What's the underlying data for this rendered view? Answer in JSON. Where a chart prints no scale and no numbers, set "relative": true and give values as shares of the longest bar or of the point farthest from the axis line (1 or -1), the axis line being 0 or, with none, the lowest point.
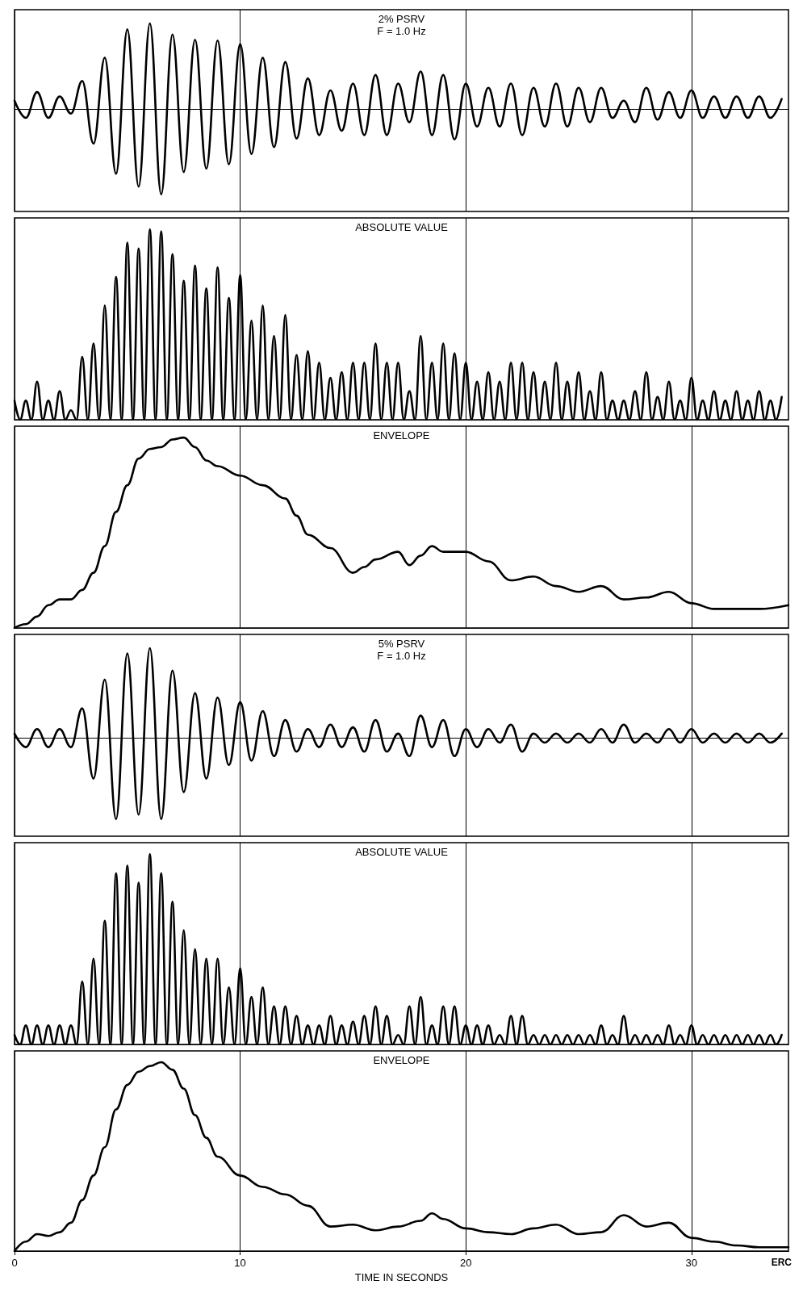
{
  "chart_data": [
    {
      "type": "line",
      "title": "2% PSRV",
      "subtitle": "F = 1.0 Hz",
      "relative": true,
      "color": "#000000",
      "marker": "none",
      "grid": "x",
      "tick_labels": false,
      "xlim": [
        0,
        34.3
      ],
      "xticks": [
        0,
        10,
        20,
        30
      ],
      "x": [
        0,
        0.5,
        1,
        1.5,
        2,
        2.5,
        3,
        3.5,
        4,
        4.5,
        5,
        5.5,
        6,
        6.5,
        7,
        7.5,
        8,
        8.5,
        9,
        9.5,
        10,
        10.5,
        11,
        11.5,
        12,
        12.5,
        13,
        13.5,
        14,
        14.5,
        15,
        15.5,
        16,
        16.5,
        17,
        17.5,
        18,
        18.5,
        19,
        19.5,
        20,
        20.5,
        21,
        21.5,
        22,
        22.5,
        23,
        23.5,
        24,
        24.5,
        25,
        25.5,
        26,
        26.5,
        27,
        27.5,
        28,
        28.5,
        29,
        29.5,
        30,
        30.5,
        31,
        31.5,
        32,
        32.5,
        33,
        33.5,
        34
      ],
      "values": [
        0.1,
        -0.1,
        0.2,
        -0.1,
        0.15,
        -0.05,
        0.33,
        -0.4,
        0.6,
        -0.75,
        0.93,
        -0.9,
        1.0,
        -0.99,
        0.87,
        -0.73,
        0.81,
        -0.69,
        0.8,
        -0.64,
        0.76,
        -0.52,
        0.6,
        -0.44,
        0.55,
        -0.34,
        0.36,
        -0.3,
        0.22,
        -0.25,
        0.3,
        -0.3,
        0.4,
        -0.3,
        0.3,
        -0.15,
        0.44,
        -0.3,
        0.4,
        -0.35,
        0.3,
        -0.2,
        0.25,
        -0.2,
        0.3,
        -0.3,
        0.25,
        -0.2,
        0.3,
        -0.2,
        0.25,
        -0.15,
        0.25,
        -0.1,
        0.1,
        -0.15,
        0.25,
        -0.12,
        0.2,
        -0.1,
        0.22,
        -0.1,
        0.15,
        -0.1,
        0.15,
        -0.1,
        0.15,
        -0.1,
        0.12
      ]
    },
    {
      "type": "line",
      "title": "ABSOLUTE VALUE",
      "relative": true,
      "color": "#000000",
      "marker": "none",
      "grid": "x",
      "tick_labels": false,
      "xlim": [
        0,
        34.3
      ],
      "xticks": [
        0,
        10,
        20,
        30
      ],
      "x": [
        0,
        0.25,
        0.5,
        0.75,
        1,
        1.25,
        1.5,
        1.75,
        2,
        2.25,
        2.5,
        2.75,
        3,
        3.25,
        3.5,
        3.75,
        4,
        4.25,
        4.5,
        4.75,
        5,
        5.25,
        5.5,
        5.75,
        6,
        6.25,
        6.5,
        6.75,
        7,
        7.25,
        7.5,
        7.75,
        8,
        8.25,
        8.5,
        8.75,
        9,
        9.25,
        9.5,
        9.75,
        10,
        10.25,
        10.5,
        10.75,
        11,
        11.25,
        11.5,
        11.75,
        12,
        12.25,
        12.5,
        12.75,
        13,
        13.25,
        13.5,
        13.75,
        14,
        14.25,
        14.5,
        14.75,
        15,
        15.25,
        15.5,
        15.75,
        16,
        16.25,
        16.5,
        16.75,
        17,
        17.25,
        17.5,
        17.75,
        18,
        18.25,
        18.5,
        18.75,
        19,
        19.25,
        19.5,
        19.75,
        20,
        20.25,
        20.5,
        20.75,
        21,
        21.25,
        21.5,
        21.75,
        22,
        22.25,
        22.5,
        22.75,
        23,
        23.25,
        23.5,
        23.75,
        24,
        24.25,
        24.5,
        24.75,
        25,
        25.25,
        25.5,
        25.75,
        26,
        26.25,
        26.5,
        26.75,
        27,
        27.25,
        27.5,
        27.75,
        28,
        28.25,
        28.5,
        28.75,
        29,
        29.25,
        29.5,
        29.75,
        30,
        30.25,
        30.5,
        30.75,
        31,
        31.25,
        31.5,
        31.75,
        32,
        32.25,
        32.5,
        32.75,
        33,
        33.25,
        33.5,
        33.75,
        34
      ],
      "values": [
        0.1,
        0,
        0.1,
        0,
        0.2,
        0,
        0.1,
        0,
        0.15,
        0,
        0.05,
        0,
        0.33,
        0,
        0.4,
        0,
        0.6,
        0,
        0.75,
        0,
        0.93,
        0,
        0.9,
        0,
        1.0,
        0,
        0.99,
        0,
        0.87,
        0,
        0.73,
        0,
        0.81,
        0,
        0.69,
        0,
        0.8,
        0,
        0.64,
        0,
        0.76,
        0,
        0.52,
        0,
        0.6,
        0,
        0.44,
        0,
        0.55,
        0,
        0.34,
        0,
        0.36,
        0,
        0.3,
        0,
        0.22,
        0,
        0.25,
        0,
        0.3,
        0,
        0.3,
        0,
        0.4,
        0,
        0.3,
        0,
        0.3,
        0,
        0.15,
        0,
        0.44,
        0,
        0.3,
        0,
        0.4,
        0,
        0.35,
        0,
        0.3,
        0,
        0.2,
        0,
        0.25,
        0,
        0.2,
        0,
        0.3,
        0,
        0.3,
        0,
        0.25,
        0,
        0.2,
        0,
        0.3,
        0,
        0.2,
        0,
        0.25,
        0,
        0.15,
        0,
        0.25,
        0,
        0.1,
        0,
        0.1,
        0,
        0.15,
        0,
        0.25,
        0,
        0.12,
        0,
        0.2,
        0,
        0.1,
        0,
        0.22,
        0,
        0.1,
        0,
        0.15,
        0,
        0.1,
        0,
        0.15,
        0,
        0.1,
        0,
        0.15,
        0,
        0.1,
        0,
        0.12
      ]
    },
    {
      "type": "line",
      "title": "ENVELOPE",
      "relative": true,
      "color": "#000000",
      "marker": "none",
      "grid": "x",
      "tick_labels": false,
      "xlim": [
        0,
        34.3
      ],
      "xticks": [
        0,
        10,
        20,
        30
      ],
      "x": [
        0,
        0.5,
        1,
        1.5,
        2,
        2.5,
        3,
        3.5,
        4,
        4.5,
        5,
        5.5,
        6,
        6.5,
        7,
        7.5,
        8,
        8.5,
        9,
        10,
        11,
        12,
        12.5,
        13,
        14,
        15,
        15.5,
        16,
        17,
        17.5,
        18,
        18.5,
        19,
        20,
        21,
        22,
        23,
        24,
        25,
        26,
        27,
        28,
        29,
        30,
        31,
        32,
        33,
        34.3
      ],
      "values": [
        0,
        0.02,
        0.06,
        0.12,
        0.15,
        0.15,
        0.2,
        0.29,
        0.43,
        0.61,
        0.75,
        0.89,
        0.94,
        0.95,
        0.99,
        1.0,
        0.95,
        0.88,
        0.85,
        0.8,
        0.75,
        0.68,
        0.59,
        0.49,
        0.42,
        0.29,
        0.32,
        0.36,
        0.4,
        0.33,
        0.38,
        0.43,
        0.4,
        0.4,
        0.35,
        0.25,
        0.27,
        0.22,
        0.19,
        0.22,
        0.15,
        0.16,
        0.19,
        0.13,
        0.1,
        0.1,
        0.1,
        0.12
      ]
    },
    {
      "type": "line",
      "title": "5% PSRV",
      "subtitle": "F = 1.0 Hz",
      "relative": true,
      "color": "#000000",
      "marker": "none",
      "grid": "x",
      "tick_labels": false,
      "xlim": [
        0,
        34.3
      ],
      "xticks": [
        0,
        10,
        20,
        30
      ],
      "x": [
        0,
        0.5,
        1,
        1.5,
        2,
        2.5,
        3,
        3.5,
        4,
        4.5,
        5,
        5.5,
        6,
        6.5,
        7,
        7.5,
        8,
        8.5,
        9,
        9.5,
        10,
        10.5,
        11,
        11.5,
        12,
        12.5,
        13,
        13.5,
        14,
        14.5,
        15,
        15.5,
        16,
        16.5,
        17,
        17.5,
        18,
        18.5,
        19,
        19.5,
        20,
        20.5,
        21,
        21.5,
        22,
        22.5,
        23,
        23.5,
        24,
        24.5,
        25,
        25.5,
        26,
        26.5,
        27,
        27.5,
        28,
        28.5,
        29,
        29.5,
        30,
        30.5,
        31,
        31.5,
        32,
        32.5,
        33,
        33.5,
        34
      ],
      "values": [
        0.05,
        -0.1,
        0.1,
        -0.1,
        0.1,
        -0.1,
        0.33,
        -0.45,
        0.65,
        -0.9,
        0.94,
        -0.85,
        1.0,
        -0.9,
        0.75,
        -0.6,
        0.5,
        -0.45,
        0.45,
        -0.3,
        0.4,
        -0.25,
        0.3,
        -0.2,
        0.2,
        -0.15,
        0.1,
        -0.1,
        0.15,
        -0.1,
        0.12,
        -0.15,
        0.2,
        -0.15,
        0.05,
        -0.2,
        0.25,
        -0.1,
        0.2,
        -0.2,
        0.1,
        -0.1,
        0.1,
        -0.05,
        0.15,
        -0.15,
        0.05,
        -0.05,
        0.05,
        -0.05,
        0.05,
        -0.05,
        0.1,
        -0.05,
        0.15,
        -0.05,
        0.05,
        -0.05,
        0.1,
        -0.05,
        0.1,
        -0.05,
        0.05,
        -0.05,
        0.05,
        -0.05,
        0.05,
        -0.05,
        0.05
      ]
    },
    {
      "type": "line",
      "title": "ABSOLUTE VALUE",
      "relative": true,
      "color": "#000000",
      "marker": "none",
      "grid": "x",
      "tick_labels": false,
      "xlim": [
        0,
        34.3
      ],
      "xticks": [
        0,
        10,
        20,
        30
      ],
      "x": [
        0,
        0.25,
        0.5,
        0.75,
        1,
        1.25,
        1.5,
        1.75,
        2,
        2.25,
        2.5,
        2.75,
        3,
        3.25,
        3.5,
        3.75,
        4,
        4.25,
        4.5,
        4.75,
        5,
        5.25,
        5.5,
        5.75,
        6,
        6.25,
        6.5,
        6.75,
        7,
        7.25,
        7.5,
        7.75,
        8,
        8.25,
        8.5,
        8.75,
        9,
        9.25,
        9.5,
        9.75,
        10,
        10.25,
        10.5,
        10.75,
        11,
        11.25,
        11.5,
        11.75,
        12,
        12.25,
        12.5,
        12.75,
        13,
        13.25,
        13.5,
        13.75,
        14,
        14.25,
        14.5,
        14.75,
        15,
        15.25,
        15.5,
        15.75,
        16,
        16.25,
        16.5,
        16.75,
        17,
        17.25,
        17.5,
        17.75,
        18,
        18.25,
        18.5,
        18.75,
        19,
        19.25,
        19.5,
        19.75,
        20,
        20.25,
        20.5,
        20.75,
        21,
        21.25,
        21.5,
        21.75,
        22,
        22.25,
        22.5,
        22.75,
        23,
        23.25,
        23.5,
        23.75,
        24,
        24.25,
        24.5,
        24.75,
        25,
        25.25,
        25.5,
        25.75,
        26,
        26.25,
        26.5,
        26.75,
        27,
        27.25,
        27.5,
        27.75,
        28,
        28.25,
        28.5,
        28.75,
        29,
        29.25,
        29.5,
        29.75,
        30,
        30.25,
        30.5,
        30.75,
        31,
        31.25,
        31.5,
        31.75,
        32,
        32.25,
        32.5,
        32.75,
        33,
        33.25,
        33.5,
        33.75,
        34
      ],
      "values": [
        0.05,
        0,
        0.1,
        0,
        0.1,
        0,
        0.1,
        0,
        0.1,
        0,
        0.1,
        0,
        0.33,
        0,
        0.45,
        0,
        0.65,
        0,
        0.9,
        0,
        0.94,
        0,
        0.85,
        0,
        1.0,
        0,
        0.9,
        0,
        0.75,
        0,
        0.6,
        0,
        0.5,
        0,
        0.45,
        0,
        0.45,
        0,
        0.3,
        0,
        0.4,
        0,
        0.25,
        0,
        0.3,
        0,
        0.2,
        0,
        0.2,
        0,
        0.15,
        0,
        0.1,
        0,
        0.1,
        0,
        0.15,
        0,
        0.1,
        0,
        0.12,
        0,
        0.15,
        0,
        0.2,
        0,
        0.15,
        0,
        0.05,
        0,
        0.2,
        0,
        0.25,
        0,
        0.1,
        0,
        0.2,
        0,
        0.2,
        0,
        0.1,
        0,
        0.1,
        0,
        0.1,
        0,
        0.05,
        0,
        0.15,
        0,
        0.15,
        0,
        0.05,
        0,
        0.05,
        0,
        0.05,
        0,
        0.05,
        0,
        0.05,
        0,
        0.05,
        0,
        0.1,
        0,
        0.05,
        0,
        0.15,
        0,
        0.05,
        0,
        0.05,
        0,
        0.05,
        0,
        0.1,
        0,
        0.05,
        0,
        0.1,
        0,
        0.05,
        0,
        0.05,
        0,
        0.05,
        0,
        0.05,
        0,
        0.05,
        0,
        0.05,
        0,
        0.05,
        0,
        0.05
      ]
    },
    {
      "type": "line",
      "title": "ENVELOPE",
      "relative": true,
      "color": "#000000",
      "marker": "none",
      "grid": "x",
      "tick_labels": "x",
      "xlabel": "TIME IN SECONDS",
      "annotations": [
        "ERC"
      ],
      "xlim": [
        0,
        34.3
      ],
      "xticks": [
        0,
        10,
        20,
        30
      ],
      "x": [
        0,
        0.5,
        1,
        1.5,
        2,
        2.5,
        3,
        3.5,
        4,
        4.5,
        5,
        5.5,
        6,
        6.5,
        7,
        7.5,
        8,
        8.5,
        9,
        10,
        11,
        12,
        13,
        14,
        15,
        16,
        17,
        18,
        18.5,
        19,
        20,
        21,
        22,
        23,
        24,
        25,
        26,
        27,
        28,
        29,
        30,
        31,
        32,
        33,
        34.3
      ],
      "values": [
        0,
        0.05,
        0.09,
        0.08,
        0.1,
        0.15,
        0.27,
        0.4,
        0.55,
        0.75,
        0.88,
        0.95,
        0.98,
        1.0,
        0.96,
        0.86,
        0.72,
        0.6,
        0.5,
        0.4,
        0.34,
        0.3,
        0.24,
        0.13,
        0.14,
        0.11,
        0.13,
        0.16,
        0.2,
        0.17,
        0.12,
        0.1,
        0.09,
        0.12,
        0.14,
        0.09,
        0.1,
        0.19,
        0.13,
        0.15,
        0.07,
        0.05,
        0.03,
        0.02,
        0.02
      ]
    }
  ]
}
